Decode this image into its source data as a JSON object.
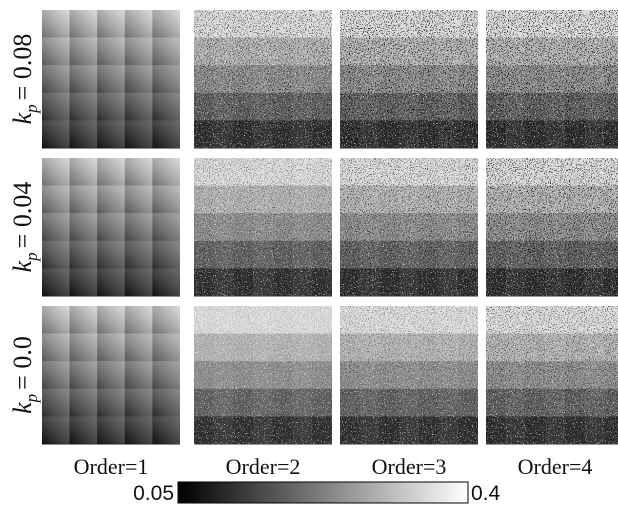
{
  "rows": [
    {
      "symbol": "k",
      "subscript": "p",
      "value": "= 0.08"
    },
    {
      "symbol": "k",
      "subscript": "p",
      "value": "= 0.04"
    },
    {
      "symbol": "k",
      "subscript": "p",
      "value": "= 0.0"
    }
  ],
  "columns": [
    "Order=1",
    "Order=2",
    "Order=3",
    "Order=4"
  ],
  "colorbar": {
    "min": 0.05,
    "max": 0.4
  }
}
